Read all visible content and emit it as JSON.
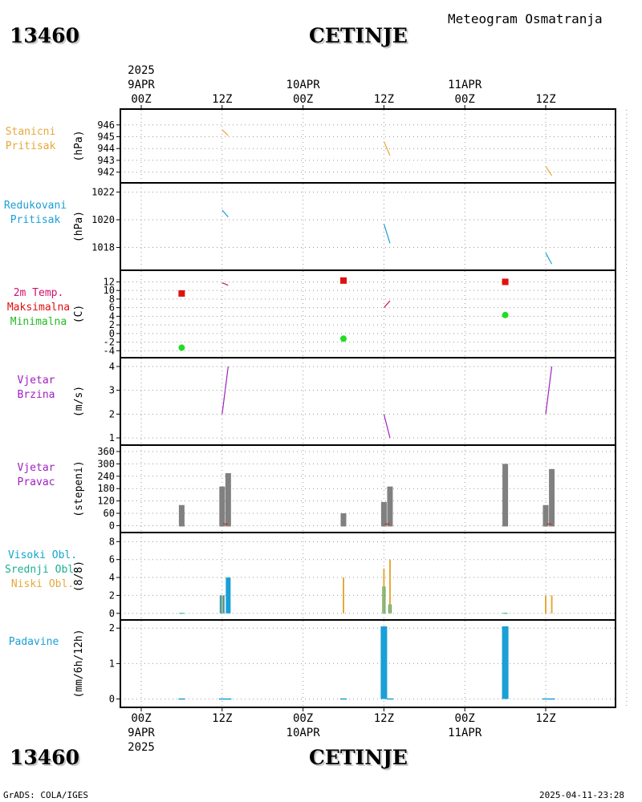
{
  "header": {
    "station_id": "13460",
    "city": "CETINJE",
    "title": "Meteogram Osmatranja",
    "year": "2025"
  },
  "footer": {
    "station_id": "13460",
    "city": "CETINJE",
    "credit": "GrADS: COLA/IGES",
    "timestamp": "2025-04-11-23:28",
    "year": "2025"
  },
  "time_axis": {
    "ticks": [
      "00Z",
      "12Z",
      "00Z",
      "12Z",
      "00Z",
      "12Z"
    ],
    "date_labels": [
      {
        "tick": 0,
        "label": "9APR"
      },
      {
        "tick": 2,
        "label": "10APR"
      },
      {
        "tick": 4,
        "label": "11APR"
      }
    ]
  },
  "panels": {
    "stanicni": {
      "labels": [
        "Stanicni",
        "Pritisak"
      ],
      "unit": "(hPa)",
      "colors": [
        "#e6a83c",
        "#e6a83c"
      ]
    },
    "redukovani": {
      "labels": [
        "Redukovani",
        "Pritisak"
      ],
      "unit": "(hPa)",
      "colors": [
        "#1a9fd6",
        "#1a9fd6"
      ]
    },
    "temp": {
      "labels": [
        "2m Temp.",
        "Maksimalna",
        "Minimalna"
      ],
      "unit": "(C)",
      "colors": [
        "#d0106e",
        "#e01010",
        "#22bb22"
      ]
    },
    "brzina": {
      "labels": [
        "Vjetar",
        "Brzina"
      ],
      "unit": "(m/s)",
      "colors": [
        "#a020c0",
        "#a020c0"
      ]
    },
    "pravac": {
      "labels": [
        "Vjetar",
        "Pravac"
      ],
      "unit": "(stepeni)",
      "colors": [
        "#a020c0",
        "#a020c0"
      ]
    },
    "oblaci": {
      "labels": [
        "Visoki Obl.",
        "Srednji Obl.",
        "Niski Obl."
      ],
      "unit": "(8/8)",
      "colors": [
        "#10a8c8",
        "#1ab090",
        "#e6a83c"
      ]
    },
    "padavine": {
      "labels": [
        "Padavine"
      ],
      "unit": "(mm/6h/12h)",
      "colors": [
        "#1a9fd6"
      ]
    }
  },
  "colors": {
    "pressure_station": "#e6a83c",
    "pressure_reduced": "#1a9fd6",
    "temperature": "#d0106e",
    "tmax": "#e01010",
    "tmin": "#22dd22",
    "wind_speed": "#a020c0",
    "wind_dir": "#808080",
    "wind_dir_marker": "#e01010",
    "cloud_high": "#1a9fd6",
    "cloud_mid": "#1ab090",
    "cloud_low": "#e6a83c",
    "precip": "#1a9fd6"
  },
  "chart_data": [
    {
      "type": "line",
      "name": "stanicni",
      "ylim": [
        941.5,
        946.8
      ],
      "yticks": [
        942,
        943,
        944,
        945,
        946
      ],
      "segments": [
        {
          "x": [
            12,
            12.9
          ],
          "y": [
            945.6,
            945.1
          ]
        },
        {
          "x": [
            36,
            36.9
          ],
          "y": [
            944.6,
            943.4
          ]
        },
        {
          "x": [
            60,
            60.9
          ],
          "y": [
            942.5,
            941.7
          ]
        }
      ]
    },
    {
      "type": "line",
      "name": "redukovani",
      "ylim": [
        1016.7,
        1022.2
      ],
      "yticks": [
        1018,
        1020,
        1022
      ],
      "segments": [
        {
          "x": [
            12,
            12.9
          ],
          "y": [
            1020.7,
            1020.2
          ]
        },
        {
          "x": [
            36,
            36.9
          ],
          "y": [
            1019.7,
            1018.3
          ]
        },
        {
          "x": [
            60,
            60.9
          ],
          "y": [
            1017.6,
            1016.8
          ]
        }
      ]
    },
    {
      "type": "line",
      "name": "temp",
      "ylim": [
        -4.5,
        13.2
      ],
      "yticks": [
        -4,
        -2,
        0,
        2,
        4,
        6,
        8,
        10,
        12
      ],
      "segments": [
        {
          "x": [
            12,
            12.9
          ],
          "y": [
            11.8,
            11.2
          ]
        },
        {
          "x": [
            36,
            36.9
          ],
          "y": [
            6.0,
            7.6
          ]
        }
      ],
      "tmax": [
        {
          "x": 6,
          "y": 9.3
        },
        {
          "x": 30,
          "y": 12.3
        },
        {
          "x": 54,
          "y": 12.0
        }
      ],
      "tmin": [
        {
          "x": 6,
          "y": -3.3
        },
        {
          "x": 30,
          "y": -1.2
        },
        {
          "x": 54,
          "y": 4.3
        }
      ]
    },
    {
      "type": "line",
      "name": "brzina",
      "ylim": [
        0.9,
        4.1
      ],
      "yticks": [
        1,
        2,
        3,
        4
      ],
      "segments": [
        {
          "x": [
            12,
            12.9
          ],
          "y": [
            2.0,
            4.0
          ]
        },
        {
          "x": [
            36,
            36.9
          ],
          "y": [
            2.0,
            1.0
          ]
        },
        {
          "x": [
            60,
            60.9
          ],
          "y": [
            2.0,
            4.0
          ]
        }
      ]
    },
    {
      "type": "bar",
      "name": "pravac",
      "ylim": [
        -10,
        360
      ],
      "yticks": [
        0,
        60,
        120,
        180,
        240,
        300,
        360
      ],
      "bars": [
        {
          "x": 6,
          "y": 100
        },
        {
          "x": 12,
          "y": 190
        },
        {
          "x": 12.9,
          "y": 255
        },
        {
          "x": 30,
          "y": 60
        },
        {
          "x": 36,
          "y": 115
        },
        {
          "x": 36.9,
          "y": 190
        },
        {
          "x": 54,
          "y": 300
        },
        {
          "x": 60,
          "y": 100
        },
        {
          "x": 60.9,
          "y": 275
        }
      ],
      "markers": [
        {
          "x": 12.5,
          "y": 8
        },
        {
          "x": 36.5,
          "y": 8
        },
        {
          "x": 60.5,
          "y": 8
        }
      ]
    },
    {
      "type": "bar",
      "name": "oblaci",
      "ylim": [
        -0.2,
        8.3
      ],
      "yticks": [
        0,
        2,
        4,
        6,
        8
      ],
      "low": [
        {
          "x": 12,
          "y": 2
        },
        {
          "x": 30,
          "y": 4
        },
        {
          "x": 36,
          "y": 5
        },
        {
          "x": 36.9,
          "y": 6
        },
        {
          "x": 60,
          "y": 2
        },
        {
          "x": 60.9,
          "y": 2
        }
      ],
      "mid": [
        {
          "x": 36,
          "y": 3
        },
        {
          "x": 36.9,
          "y": 1
        }
      ],
      "high": [
        {
          "x": 12,
          "y": 2
        },
        {
          "x": 12.9,
          "y": 4
        }
      ]
    },
    {
      "type": "bar",
      "name": "padavine",
      "ylim": [
        -0.1,
        2.05
      ],
      "yticks": [
        0,
        1,
        2
      ],
      "bars": [
        {
          "x": 36,
          "y": 2.05
        },
        {
          "x": 54,
          "y": 2.05
        }
      ],
      "traces": [
        6,
        12,
        12.9,
        30,
        36.9,
        60,
        60.9
      ]
    }
  ]
}
